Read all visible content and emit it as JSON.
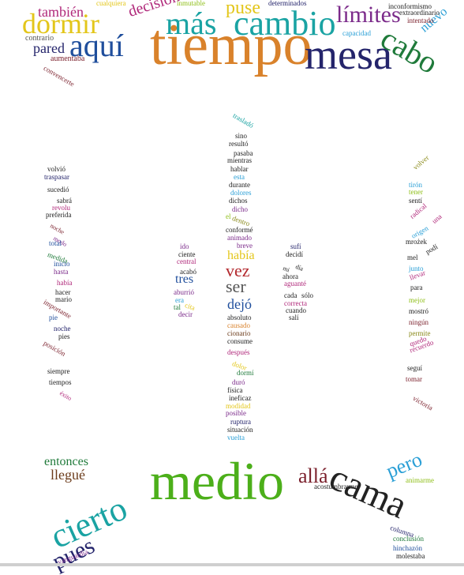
{
  "colors": {
    "orange": "#d9822b",
    "blue": "#1f4e9c",
    "teal": "#1aa3a3",
    "green": "#4caf1a",
    "darkgreen": "#1f7a3a",
    "navy": "#24246b",
    "purple": "#7b2a8a",
    "magenta": "#b0287a",
    "red": "#b3282d",
    "brown": "#6b3b1a",
    "olive": "#8a8a1a",
    "yellow": "#e3c61a",
    "gray": "#555555",
    "black": "#222222",
    "cyan": "#2a9fd6",
    "lime": "#8fbf1a",
    "pink": "#d14aa8",
    "maroon": "#7a1f2b"
  },
  "words": [
    {
      "text": "tiempo",
      "color": "orange"
    },
    {
      "text": "mesa",
      "color": "navy"
    },
    {
      "text": "cambio",
      "color": "teal"
    },
    {
      "text": "más",
      "color": "teal"
    },
    {
      "text": "dormir",
      "color": "yellow"
    },
    {
      "text": "aquí",
      "color": "blue"
    },
    {
      "text": "cabo",
      "color": "darkgreen"
    },
    {
      "text": "límites",
      "color": "purple"
    },
    {
      "text": "puse",
      "color": "yellow"
    },
    {
      "text": "también",
      "color": "magenta"
    },
    {
      "text": "decisión",
      "color": "magenta"
    },
    {
      "text": "nuevo",
      "color": "cyan"
    },
    {
      "text": "pared",
      "color": "navy"
    },
    {
      "text": "contrario",
      "color": "gray"
    },
    {
      "text": "aumentaba",
      "color": "maroon"
    },
    {
      "text": "cualquiera",
      "color": "yellow"
    },
    {
      "text": "inmutable",
      "color": "lime"
    },
    {
      "text": "determinados",
      "color": "navy"
    },
    {
      "text": "inconformismo",
      "color": "black"
    },
    {
      "text": "extraordinario",
      "color": "black"
    },
    {
      "text": "intentado",
      "color": "maroon"
    },
    {
      "text": "capacidad",
      "color": "cyan"
    },
    {
      "text": "convencerte",
      "color": "maroon"
    },
    {
      "text": "trasladó",
      "color": "teal"
    },
    {
      "text": "sino",
      "color": "black"
    },
    {
      "text": "resultó",
      "color": "black"
    },
    {
      "text": "pasaba",
      "color": "black"
    },
    {
      "text": "mientras",
      "color": "black"
    },
    {
      "text": "hablar",
      "color": "black"
    },
    {
      "text": "esta",
      "color": "cyan"
    },
    {
      "text": "durante",
      "color": "black"
    },
    {
      "text": "dolores",
      "color": "cyan"
    },
    {
      "text": "dichos",
      "color": "black"
    },
    {
      "text": "dicho",
      "color": "purple"
    },
    {
      "text": "el",
      "color": "lime"
    },
    {
      "text": "dentro",
      "color": "olive"
    },
    {
      "text": "conformé",
      "color": "black"
    },
    {
      "text": "animado",
      "color": "purple"
    },
    {
      "text": "breve",
      "color": "purple"
    },
    {
      "text": "había",
      "color": "yellow"
    },
    {
      "text": "vez",
      "color": "red"
    },
    {
      "text": "ser",
      "color": "gray"
    },
    {
      "text": "dejó",
      "color": "blue"
    },
    {
      "text": "absoluto",
      "color": "black"
    },
    {
      "text": "causado",
      "color": "orange"
    },
    {
      "text": "cionario",
      "color": "brown"
    },
    {
      "text": "consume",
      "color": "black"
    },
    {
      "text": "después",
      "color": "magenta"
    },
    {
      "text": "dolor",
      "color": "yellow"
    },
    {
      "text": "dormí",
      "color": "darkgreen"
    },
    {
      "text": "duró",
      "color": "purple"
    },
    {
      "text": "física",
      "color": "black"
    },
    {
      "text": "ineficaz",
      "color": "black"
    },
    {
      "text": "modidad",
      "color": "yellow"
    },
    {
      "text": "posible",
      "color": "purple"
    },
    {
      "text": "ruptura",
      "color": "navy"
    },
    {
      "text": "situación",
      "color": "black"
    },
    {
      "text": "vuelta",
      "color": "cyan"
    },
    {
      "text": "ido",
      "color": "purple"
    },
    {
      "text": "ciente",
      "color": "black"
    },
    {
      "text": "central",
      "color": "magenta"
    },
    {
      "text": "acabó",
      "color": "black"
    },
    {
      "text": "tres",
      "color": "blue"
    },
    {
      "text": "aburrió",
      "color": "purple"
    },
    {
      "text": "era",
      "color": "cyan"
    },
    {
      "text": "tal",
      "color": "darkgreen"
    },
    {
      "text": "cita",
      "color": "yellow"
    },
    {
      "text": "decir",
      "color": "purple"
    },
    {
      "text": "sufí",
      "color": "navy"
    },
    {
      "text": "decidí",
      "color": "black"
    },
    {
      "text": "mi",
      "color": "black"
    },
    {
      "text": "día",
      "color": "black"
    },
    {
      "text": "ahora",
      "color": "black"
    },
    {
      "text": "aguanté",
      "color": "magenta"
    },
    {
      "text": "cada",
      "color": "black"
    },
    {
      "text": "sólo",
      "color": "black"
    },
    {
      "text": "correcta",
      "color": "magenta"
    },
    {
      "text": "cuando",
      "color": "black"
    },
    {
      "text": "salí",
      "color": "black"
    },
    {
      "text": "volvió",
      "color": "black"
    },
    {
      "text": "traspasar",
      "color": "navy"
    },
    {
      "text": "sucedió",
      "color": "black"
    },
    {
      "text": "sabrá",
      "color": "black"
    },
    {
      "text": "revolu",
      "color": "magenta"
    },
    {
      "text": "preferida",
      "color": "black"
    },
    {
      "text": "noche",
      "color": "maroon"
    },
    {
      "text": "modo",
      "color": "purple"
    },
    {
      "text": "total",
      "color": "blue"
    },
    {
      "text": "medida",
      "color": "darkgreen"
    },
    {
      "text": "inicio",
      "color": "blue"
    },
    {
      "text": "hasta",
      "color": "purple"
    },
    {
      "text": "había",
      "color": "magenta"
    },
    {
      "text": "hacer",
      "color": "black"
    },
    {
      "text": "mario",
      "color": "black"
    },
    {
      "text": "importante",
      "color": "maroon"
    },
    {
      "text": "pie",
      "color": "blue"
    },
    {
      "text": "noche",
      "color": "navy"
    },
    {
      "text": "pies",
      "color": "black"
    },
    {
      "text": "posición",
      "color": "maroon"
    },
    {
      "text": "siempre",
      "color": "black"
    },
    {
      "text": "tiempos",
      "color": "black"
    },
    {
      "text": "éxito",
      "color": "magenta"
    },
    {
      "text": "volver",
      "color": "olive"
    },
    {
      "text": "tirón",
      "color": "cyan"
    },
    {
      "text": "tener",
      "color": "lime"
    },
    {
      "text": "sentí",
      "color": "black"
    },
    {
      "text": "radical",
      "color": "magenta"
    },
    {
      "text": "una",
      "color": "magenta"
    },
    {
      "text": "origen",
      "color": "cyan"
    },
    {
      "text": "mrożek",
      "color": "black"
    },
    {
      "text": "podí",
      "color": "black"
    },
    {
      "text": "mel",
      "color": "black"
    },
    {
      "text": "junto",
      "color": "cyan"
    },
    {
      "text": "llevar",
      "color": "magenta"
    },
    {
      "text": "para",
      "color": "black"
    },
    {
      "text": "mejor",
      "color": "lime"
    },
    {
      "text": "mostró",
      "color": "black"
    },
    {
      "text": "ningún",
      "color": "maroon"
    },
    {
      "text": "permite",
      "color": "olive"
    },
    {
      "text": "quedo",
      "color": "magenta"
    },
    {
      "text": "recuerdo",
      "color": "magenta"
    },
    {
      "text": "seguí",
      "color": "black"
    },
    {
      "text": "tomar",
      "color": "maroon"
    },
    {
      "text": "victoria",
      "color": "maroon"
    },
    {
      "text": "medio",
      "color": "green"
    },
    {
      "text": "cierto",
      "color": "teal"
    },
    {
      "text": "cama",
      "color": "black"
    },
    {
      "text": "allá",
      "color": "maroon"
    },
    {
      "text": "pero",
      "color": "cyan"
    },
    {
      "text": "entonces",
      "color": "darkgreen"
    },
    {
      "text": "llegué",
      "color": "brown"
    },
    {
      "text": "pues",
      "color": "navy"
    },
    {
      "text": "acostumbrarme",
      "color": "black"
    },
    {
      "text": "animarme",
      "color": "lime"
    },
    {
      "text": "columna",
      "color": "navy"
    },
    {
      "text": "conclusión",
      "color": "darkgreen"
    },
    {
      "text": "hinchazón",
      "color": "blue"
    },
    {
      "text": "molestaba",
      "color": "black"
    },
    {
      "text": "vanguardia",
      "color": "purple"
    }
  ]
}
